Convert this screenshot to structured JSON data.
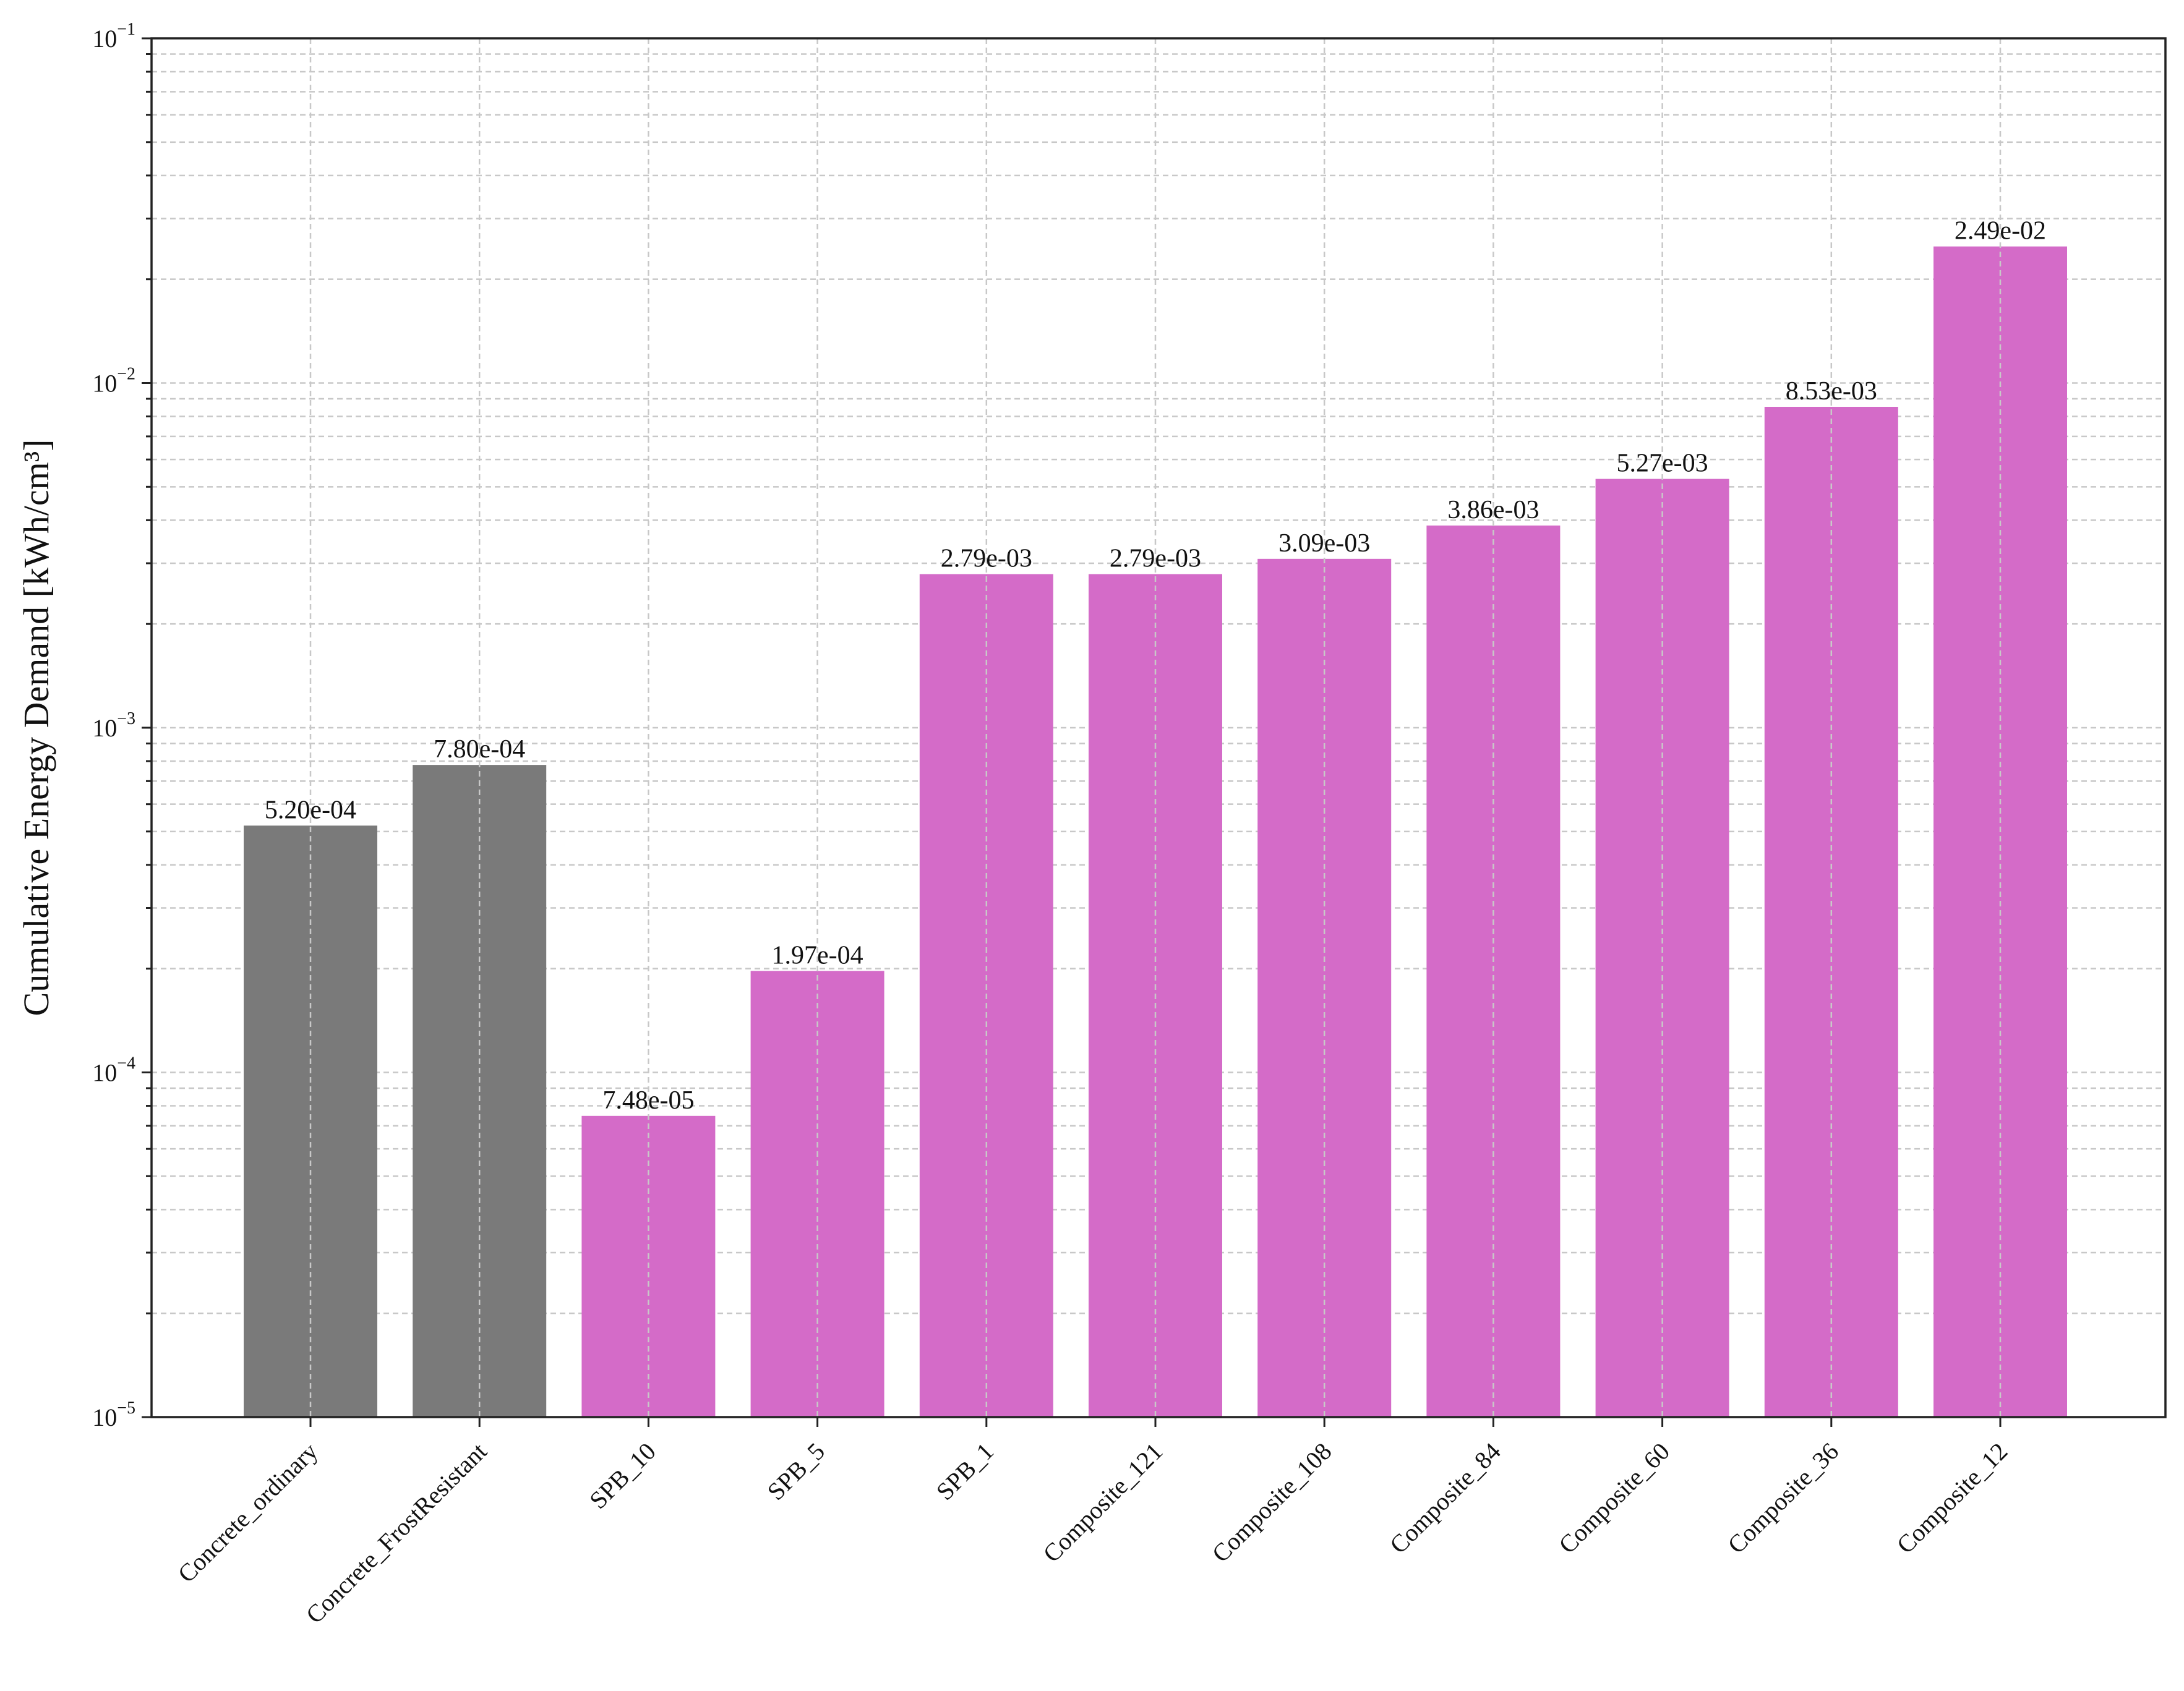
{
  "chart_data": {
    "type": "bar",
    "title": "",
    "xlabel": "",
    "ylabel": "Cumulative Energy Demand [kWh/cm³]",
    "yscale": "log",
    "ylim": [
      1e-05,
      0.1
    ],
    "grid": true,
    "y_ticks": [
      {
        "base": "10",
        "exp": "−5"
      },
      {
        "base": "10",
        "exp": "−4"
      },
      {
        "base": "10",
        "exp": "−3"
      },
      {
        "base": "10",
        "exp": "−2"
      },
      {
        "base": "10",
        "exp": "−1"
      }
    ],
    "categories": [
      "Concrete_ordinary",
      "Concrete_FrostResistant",
      "SPB_10",
      "SPB_5",
      "SPB_1",
      "Composite_121",
      "Composite_108",
      "Composite_84",
      "Composite_60",
      "Composite_36",
      "Composite_12"
    ],
    "values": [
      0.00052,
      0.00078,
      7.48e-05,
      0.000197,
      0.00279,
      0.00279,
      0.00309,
      0.00386,
      0.00527,
      0.00853,
      0.0249
    ],
    "value_labels": [
      "5.20e-04",
      "7.80e-04",
      "7.48e-05",
      "1.97e-04",
      "2.79e-03",
      "2.79e-03",
      "3.09e-03",
      "3.86e-03",
      "5.27e-03",
      "8.53e-03",
      "2.49e-02"
    ],
    "bar_colors": [
      "#7a7a7a",
      "#7a7a7a",
      "#d46bc8",
      "#d46bc8",
      "#d46bc8",
      "#d46bc8",
      "#d46bc8",
      "#d46bc8",
      "#d46bc8",
      "#d46bc8",
      "#d46bc8"
    ]
  }
}
